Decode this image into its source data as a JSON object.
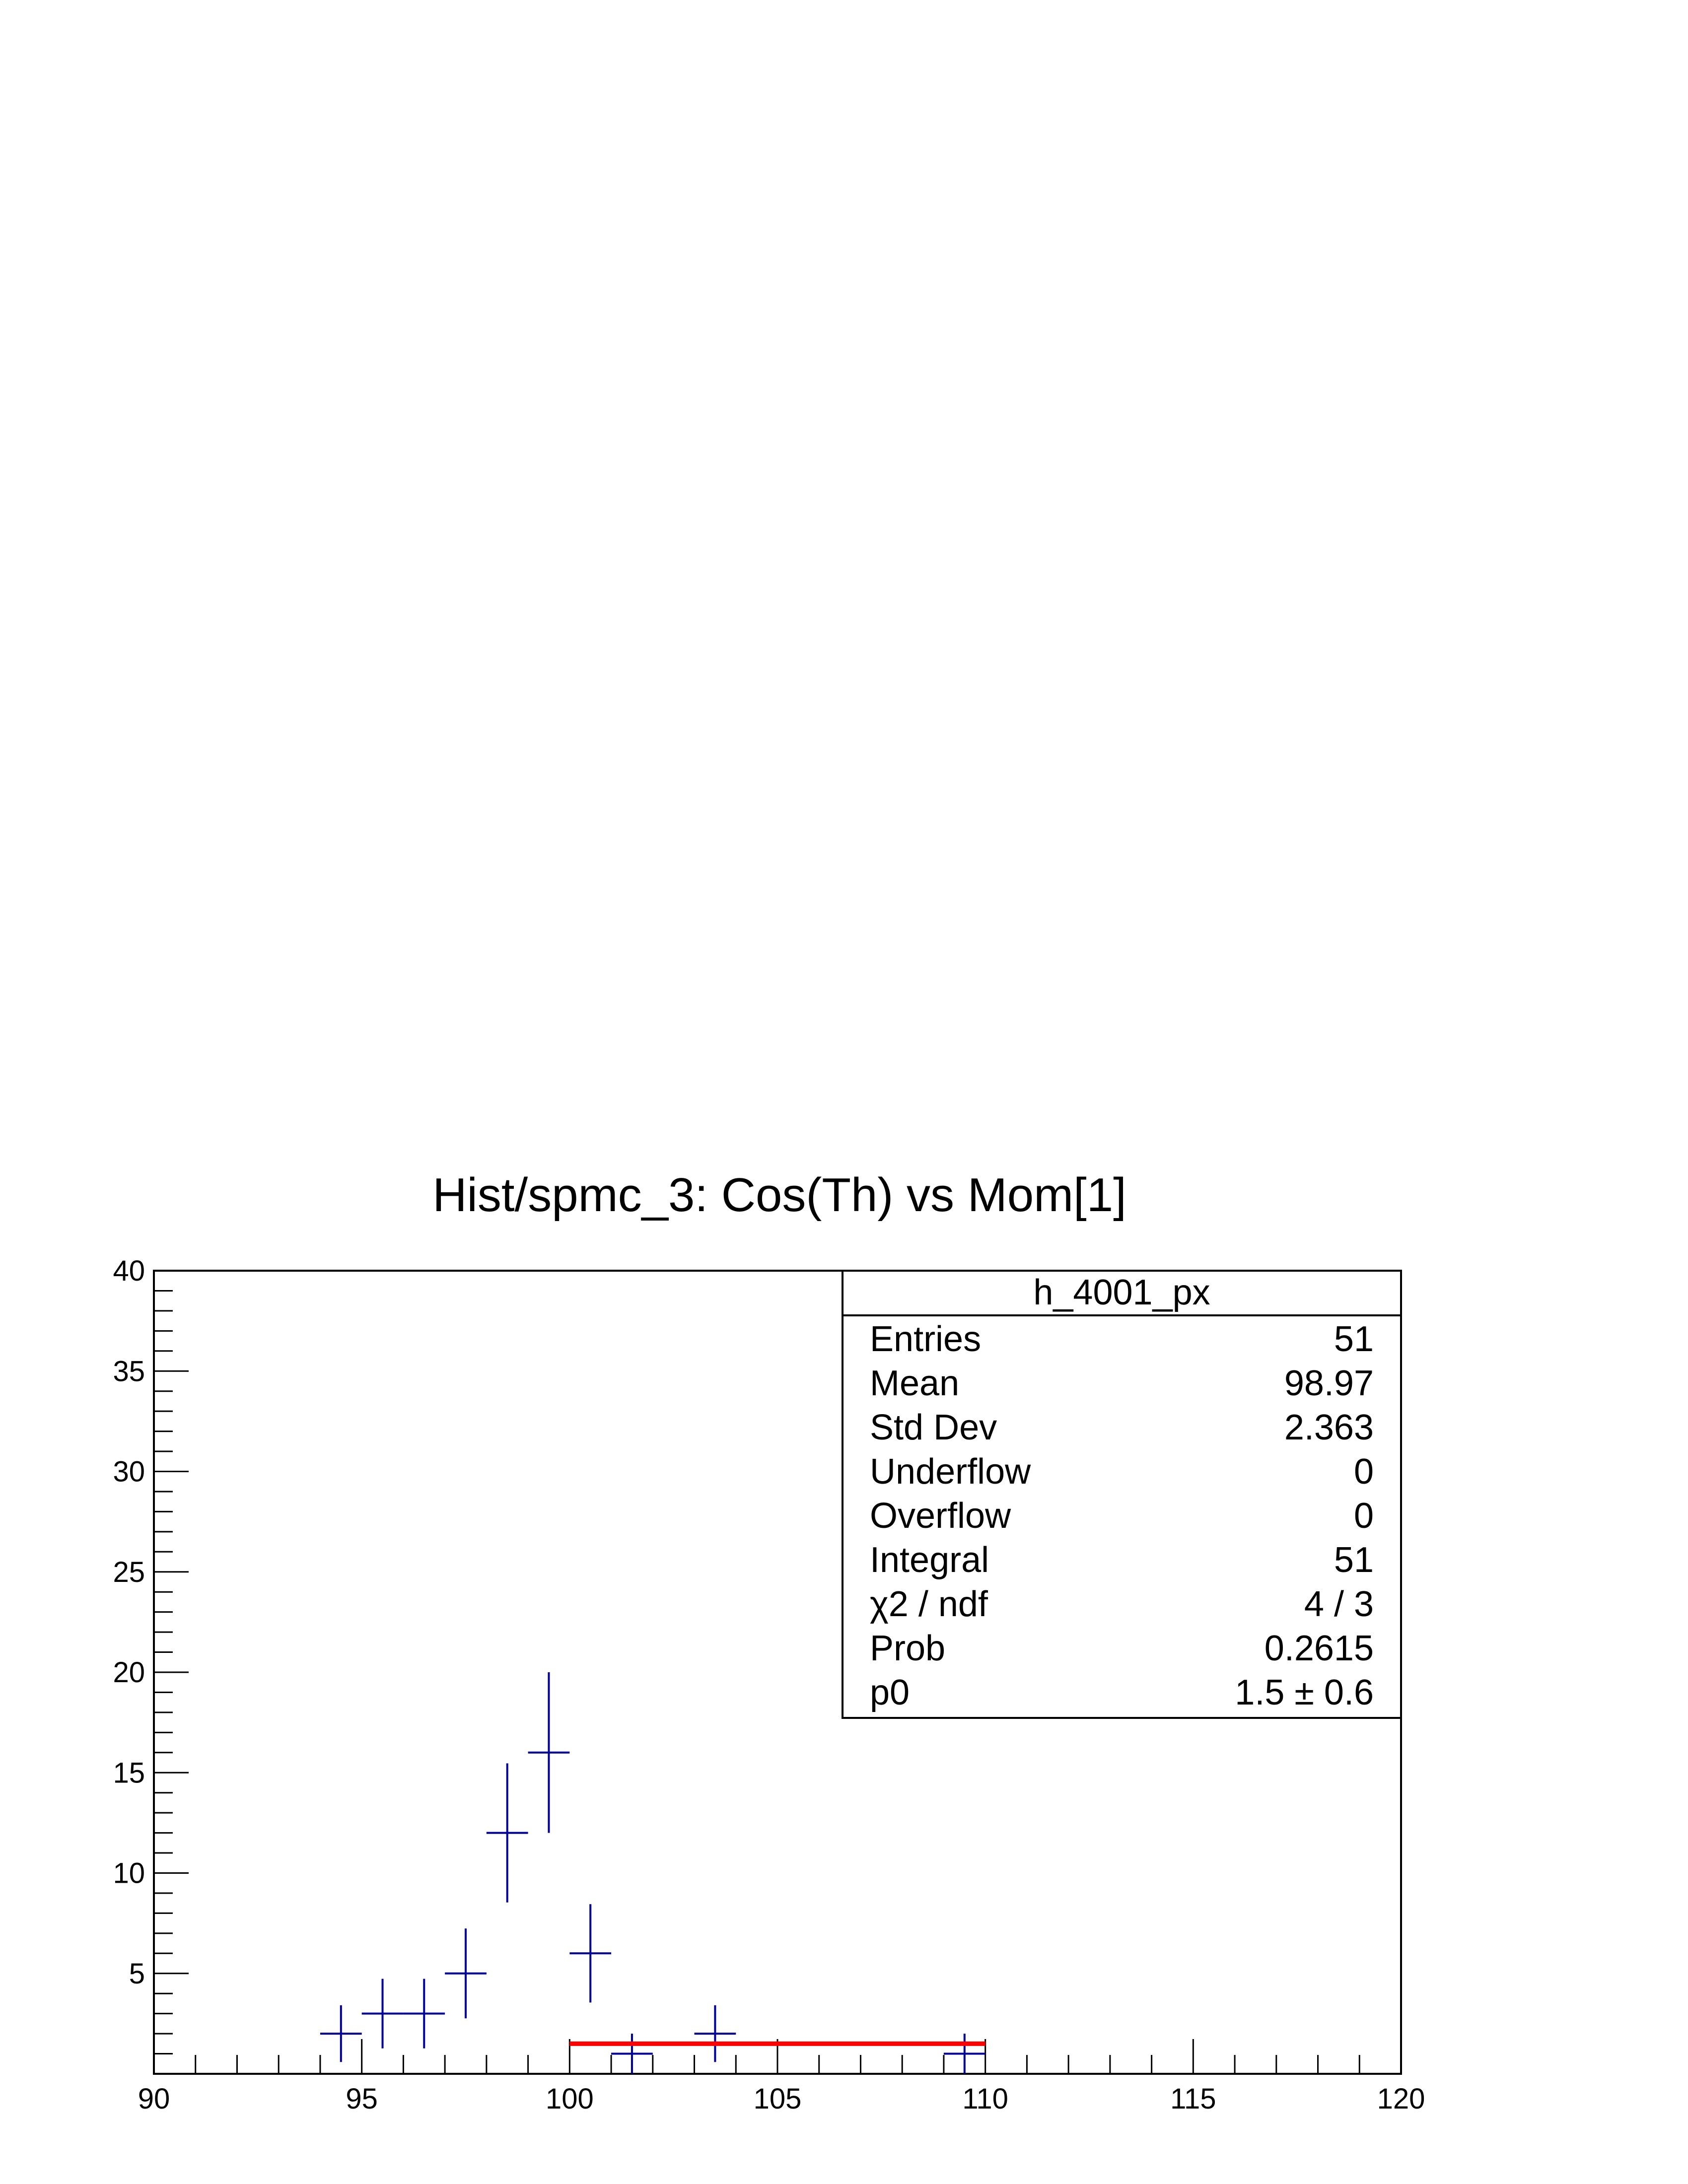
{
  "chart_data": {
    "type": "scatter",
    "title": "Hist/spmc_3: Cos(Th) vs Mom[1]",
    "xlabel": "",
    "ylabel": "",
    "xlim": [
      90,
      120
    ],
    "ylim": [
      0,
      40
    ],
    "x_ticks": [
      "90",
      "95",
      "100",
      "105",
      "110",
      "115",
      "120"
    ],
    "y_ticks": [
      "5",
      "10",
      "15",
      "20",
      "25",
      "30",
      "35",
      "40"
    ],
    "series": [
      {
        "color": "#000099",
        "bin_half_width": 0.5,
        "points": [
          {
            "x": 94.5,
            "y": 2,
            "err": 1.414
          },
          {
            "x": 95.5,
            "y": 3,
            "err": 1.732
          },
          {
            "x": 96.5,
            "y": 3,
            "err": 1.732
          },
          {
            "x": 97.5,
            "y": 5,
            "err": 2.236
          },
          {
            "x": 98.5,
            "y": 12,
            "err": 3.464
          },
          {
            "x": 99.5,
            "y": 16,
            "err": 4.0
          },
          {
            "x": 100.5,
            "y": 6,
            "err": 2.449
          },
          {
            "x": 101.5,
            "y": 1,
            "err": 1.0
          },
          {
            "x": 103.5,
            "y": 2,
            "err": 1.414
          },
          {
            "x": 109.5,
            "y": 1,
            "err": 1.0
          }
        ]
      }
    ],
    "fit": {
      "color": "#ff0000",
      "x_range": [
        100,
        110
      ],
      "y": 1.5
    },
    "stats_box": {
      "name": "h_4001_px",
      "rows": [
        {
          "label": "Entries",
          "value": "51"
        },
        {
          "label": "Mean",
          "value": "98.97"
        },
        {
          "label": "Std Dev",
          "value": "2.363"
        },
        {
          "label": "Underflow",
          "value": "0"
        },
        {
          "label": "Overflow",
          "value": "0"
        },
        {
          "label": "Integral",
          "value": "51"
        },
        {
          "label": "χ2 / ndf",
          "value": "4 / 3"
        },
        {
          "label": "Prob",
          "value": "0.2615"
        },
        {
          "label": "p0",
          "value": "1.5 ± 0.6"
        }
      ]
    }
  }
}
